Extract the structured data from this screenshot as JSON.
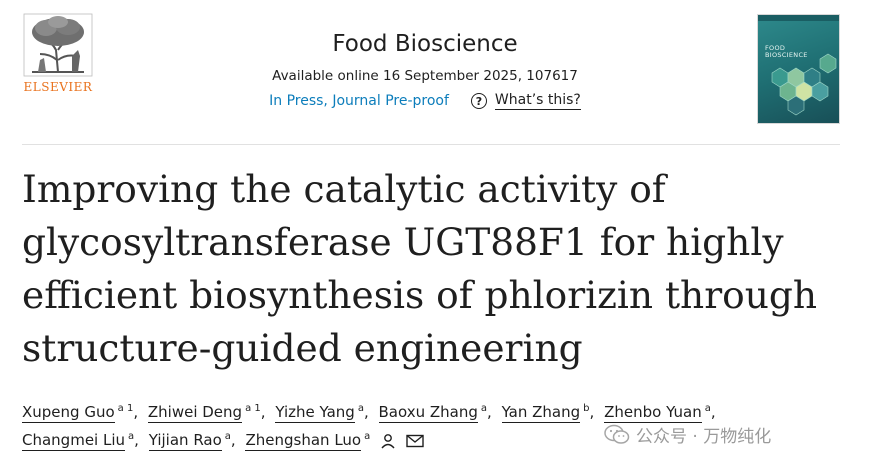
{
  "publisher": {
    "name": "ELSEVIER"
  },
  "journal": {
    "title": "Food Bioscience",
    "available": "Available online 16 September 2025, 107617",
    "status": "In Press, Journal Pre-proof",
    "help_label": "What’s this?",
    "help_glyph": "?",
    "cover_title_line1": "FOOD",
    "cover_title_line2": "BIOSCIENCE"
  },
  "article": {
    "title_lines": [
      "Improving the catalytic activity of",
      "glycosyltransferase UGT88F1 for highly",
      "efficient biosynthesis of phlorizin through",
      "structure-guided engineering"
    ]
  },
  "authors": [
    {
      "name": "Xupeng Guo",
      "aff": "a 1"
    },
    {
      "name": "Zhiwei Deng",
      "aff": "a 1"
    },
    {
      "name": "Yizhe Yang",
      "aff": "a"
    },
    {
      "name": "Baoxu Zhang",
      "aff": "a"
    },
    {
      "name": "Yan Zhang",
      "aff": "b"
    },
    {
      "name": "Zhenbo Yuan",
      "aff": "a"
    },
    {
      "name": "Changmei Liu",
      "aff": "a"
    },
    {
      "name": "Yijian Rao",
      "aff": "a"
    },
    {
      "name": "Zhengshan Luo",
      "aff": "a"
    }
  ],
  "watermark": {
    "text": "公众号 · 万物纯化"
  },
  "colors": {
    "link": "#0c7dbb",
    "elsevier_orange": "#e9711c",
    "text": "#1f1f1f"
  }
}
